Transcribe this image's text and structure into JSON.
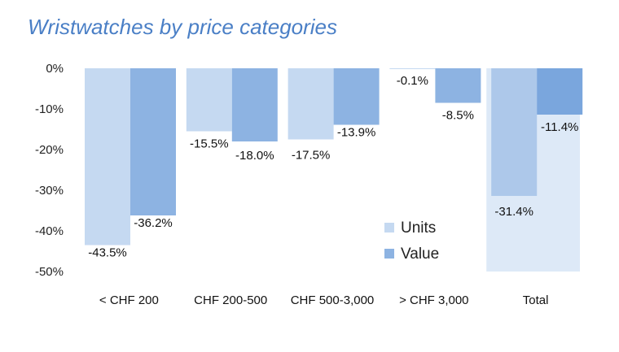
{
  "title": "Wristwatches by price categories",
  "chart_data": {
    "type": "bar",
    "categories": [
      "< CHF 200",
      "CHF 200-500",
      "CHF 500-3,000",
      "> CHF 3,000",
      "Total"
    ],
    "series": [
      {
        "name": "Units",
        "values": [
          -43.5,
          -15.5,
          -17.5,
          -0.1,
          -31.4
        ],
        "labels": [
          "-43.5%",
          "-15.5%",
          "-17.5%",
          "-0.1%",
          "-31.4%"
        ]
      },
      {
        "name": "Value",
        "values": [
          -36.2,
          -18.0,
          -13.9,
          -8.5,
          -11.4
        ],
        "labels": [
          "-36.2%",
          "-18.0%",
          "-13.9%",
          "-8.5%",
          "-11.4%"
        ]
      }
    ],
    "yticks": [
      "0%",
      "-10%",
      "-20%",
      "-30%",
      "-40%",
      "-50%"
    ],
    "ylim": [
      -50,
      0
    ],
    "grid": false,
    "legend": "inside-right",
    "colors": {
      "units": "#c5d9f1",
      "value": "#8db3e2",
      "total_units": "#adc8ea",
      "total_value": "#7aa6dd",
      "total_background": "#dde9f7"
    }
  }
}
